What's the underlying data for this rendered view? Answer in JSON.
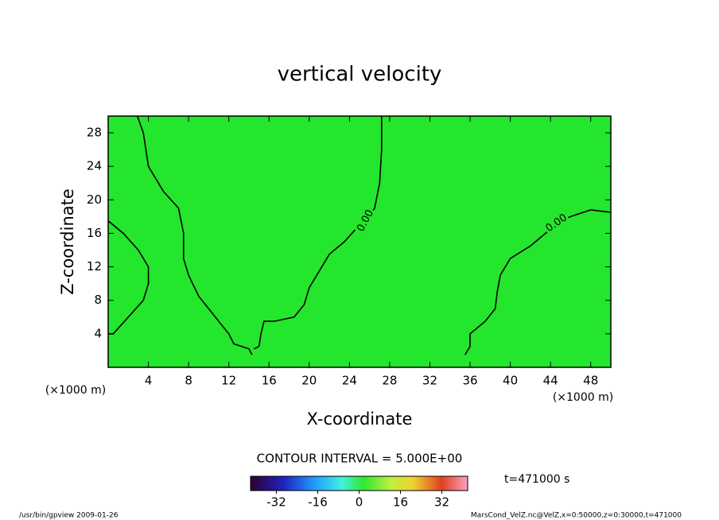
{
  "chart_data": {
    "type": "contour",
    "title": "vertical velocity",
    "x_label": "X-coordinate",
    "y_label": "Z-coordinate",
    "x_unit": "(×1000 m)",
    "xlim": [
      0,
      50
    ],
    "ylim": [
      0,
      30
    ],
    "xticks": [
      4,
      8,
      12,
      16,
      20,
      24,
      28,
      32,
      36,
      40,
      44,
      48
    ],
    "yticks": [
      4,
      8,
      12,
      16,
      20,
      24,
      28
    ],
    "fill_color": "#24e62c",
    "contour_color": "#000000",
    "contours": [
      {
        "level": 0,
        "x": [
          2.9,
          3.5,
          4,
          5.5,
          7,
          7.5,
          7.5,
          8,
          9,
          10,
          11,
          12,
          12.5,
          14,
          14.3
        ],
        "y": [
          30,
          28,
          24,
          21,
          19,
          16,
          13,
          11,
          8.5,
          7,
          5.5,
          4,
          2.8,
          2.2,
          1.5
        ]
      },
      {
        "level": 0,
        "label": "0.00",
        "x": [
          27.2,
          27.2,
          27,
          26.5,
          25.6,
          25,
          23.5,
          22,
          21,
          20,
          19.5,
          18.5,
          16.5,
          15.5,
          15.2,
          15,
          14.5
        ],
        "y": [
          30,
          26,
          22,
          19,
          17.5,
          17,
          15,
          13.5,
          11.5,
          9.5,
          7.5,
          6,
          5.5,
          5.5,
          4,
          2.5,
          2.2
        ]
      },
      {
        "level": 0,
        "label": "0.00",
        "x": [
          50,
          48,
          46,
          44.6,
          44,
          42,
          40,
          39,
          38.7,
          38.5,
          37.5,
          36,
          36,
          35.5
        ],
        "y": [
          18.5,
          18.8,
          18,
          17.2,
          16.5,
          14.5,
          13,
          11,
          9,
          7,
          5.5,
          4,
          2.5,
          1.5
        ]
      },
      {
        "level": 0,
        "x": [
          0,
          1.5,
          3,
          4,
          4,
          3.5,
          2,
          0.5,
          0
        ],
        "y": [
          17.5,
          16,
          14,
          12,
          10,
          8,
          6,
          4,
          4
        ]
      }
    ],
    "contour_interval_text": "CONTOUR INTERVAL = 5.000E+00",
    "time_text": "t=471000 s",
    "colorbar": {
      "lim": [
        -42,
        42
      ],
      "ticks": [
        -32,
        -16,
        0,
        16,
        32
      ]
    },
    "footer_left": "/usr/bin/gpview  2009-01-26",
    "footer_right": "MarsCond_VelZ.nc@VelZ,x=0:50000,z=0:30000,t=471000"
  }
}
